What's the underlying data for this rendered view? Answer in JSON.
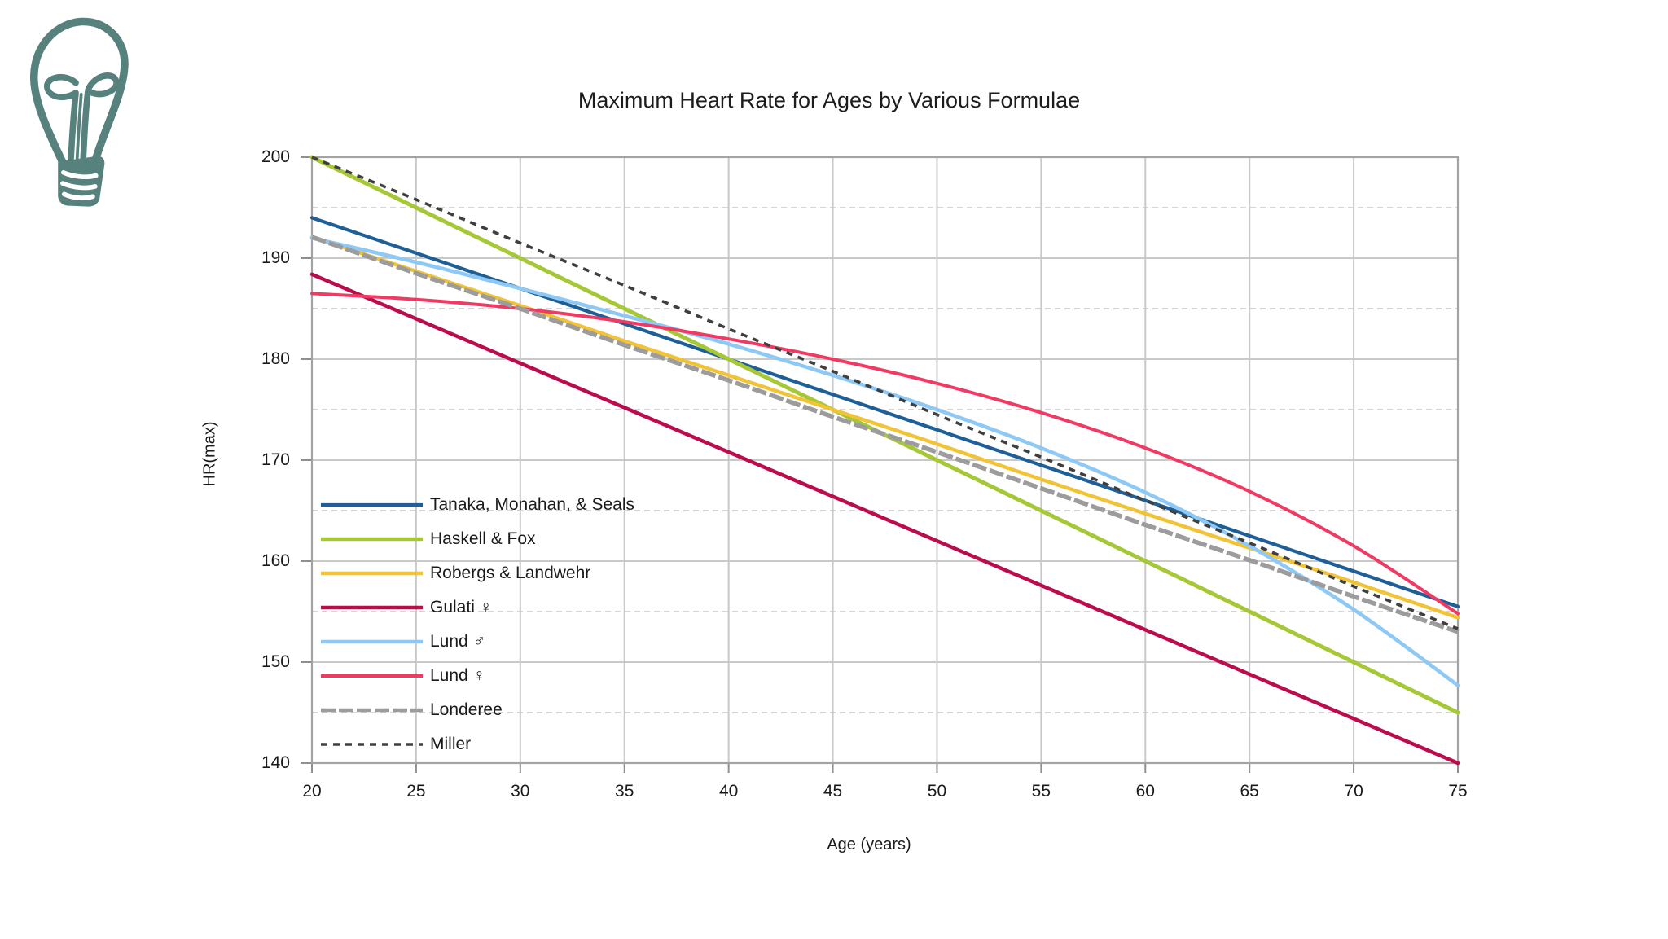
{
  "logo": {
    "name": "hand-drawn lightbulb doodle",
    "color": "#56817d"
  },
  "chart_data": {
    "type": "line",
    "title": "Maximum Heart Rate for Ages by Various Formulae",
    "xlabel": "Age (years)",
    "ylabel": "HR(max)",
    "xlim": [
      20,
      75
    ],
    "ylim": [
      140,
      200
    ],
    "x_ticks": [
      20,
      25,
      30,
      35,
      40,
      45,
      50,
      55,
      60,
      65,
      70,
      75
    ],
    "y_ticks": [
      140,
      150,
      160,
      170,
      180,
      190,
      200
    ],
    "y_minor_gridlines": [
      145,
      155,
      165,
      175,
      185,
      195
    ],
    "grid": "major solid, minor horizontal dashed",
    "legend_position": "inside lower-left, no frame",
    "grid_color": "#c9c9c9",
    "minor_grid_color": "#c6c6c6",
    "border_color": "#a3a3a3",
    "x": [
      20,
      25,
      30,
      35,
      40,
      45,
      50,
      55,
      60,
      65,
      70,
      75
    ],
    "series": [
      {
        "name": "Tanaka, Monahan, & Seals",
        "color": "#1d5f96",
        "dash": "",
        "width": 4.2,
        "values": [
          194,
          190.5,
          187,
          183.5,
          180,
          176.5,
          173,
          169.5,
          166,
          162.5,
          159,
          155.5
        ]
      },
      {
        "name": "Haskell & Fox",
        "color": "#a6c836",
        "dash": "",
        "width": 5,
        "values": [
          200,
          195,
          190,
          185,
          180,
          175,
          170,
          165,
          160,
          155,
          150,
          145
        ]
      },
      {
        "name": "Robergs & Landwehr",
        "color": "#f2c336",
        "dash": "",
        "width": 4.5,
        "values": [
          192.1,
          188.7,
          185.3,
          181.8,
          178.4,
          175,
          171.6,
          168.1,
          164.7,
          161.3,
          157.9,
          154.4
        ]
      },
      {
        "name": "Gulati ♀",
        "color": "#bb0c4d",
        "dash": "",
        "width": 4.5,
        "values": [
          188.4,
          184,
          179.6,
          175.2,
          170.8,
          166.4,
          162,
          157.6,
          153.2,
          148.8,
          144.4,
          140
        ]
      },
      {
        "name": "Lund ♂",
        "color": "#8ec9f5",
        "dash": "",
        "width": 4.6,
        "values": [
          192,
          189.6,
          187,
          184.3,
          181.5,
          178.4,
          175,
          171.2,
          166.8,
          161.5,
          155.2,
          147.7
        ]
      },
      {
        "name": "Lund ♀",
        "color": "#f13a63",
        "dash": "",
        "width": 4,
        "values": [
          186.5,
          185.9,
          185,
          183.7,
          182,
          180,
          177.6,
          174.7,
          171.2,
          166.9,
          161.5,
          154.8
        ]
      },
      {
        "name": "Londeree",
        "color": "#9c9c9c",
        "dash": "18 4",
        "width": 5.5,
        "values": [
          192.1,
          188.5,
          185,
          181.4,
          177.9,
          174.3,
          170.8,
          167.2,
          163.6,
          160.1,
          156.5,
          153
        ]
      },
      {
        "name": "Miller",
        "color": "#3f3f3f",
        "dash": "8 7",
        "width": 3.6,
        "values": [
          200,
          195.8,
          191.5,
          187.3,
          183,
          178.8,
          174.5,
          170.3,
          166,
          161.8,
          157.5,
          153.3
        ]
      }
    ]
  }
}
